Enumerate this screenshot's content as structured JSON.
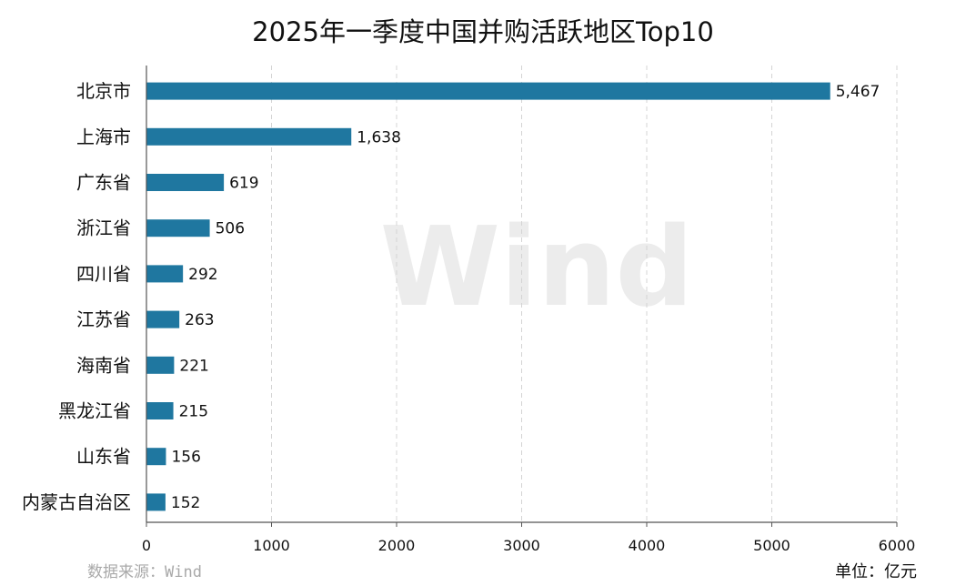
{
  "chart_data": {
    "type": "bar",
    "orientation": "horizontal",
    "title": "2025年一季度中国并购活跃地区Top10",
    "categories": [
      "北京市",
      "上海市",
      "广东省",
      "浙江省",
      "四川省",
      "江苏省",
      "海南省",
      "黑龙江省",
      "山东省",
      "内蒙古自治区"
    ],
    "values": [
      5467,
      1638,
      619,
      506,
      292,
      263,
      221,
      215,
      156,
      152
    ],
    "value_labels": [
      "5,467",
      "1,638",
      "619",
      "506",
      "292",
      "263",
      "221",
      "215",
      "156",
      "152"
    ],
    "xlabel": "",
    "ylabel": "",
    "xlim": [
      0,
      6000
    ],
    "xticks": [
      0,
      1000,
      2000,
      3000,
      4000,
      5000,
      6000
    ],
    "xtick_labels": [
      "0",
      "1000",
      "2000",
      "3000",
      "4000",
      "5000",
      "6000"
    ],
    "grid": true,
    "legend": "none",
    "bar_color": "#1f77a0",
    "source": "数据来源：Wind",
    "unit": "单位：亿元",
    "watermark": "Wind"
  }
}
